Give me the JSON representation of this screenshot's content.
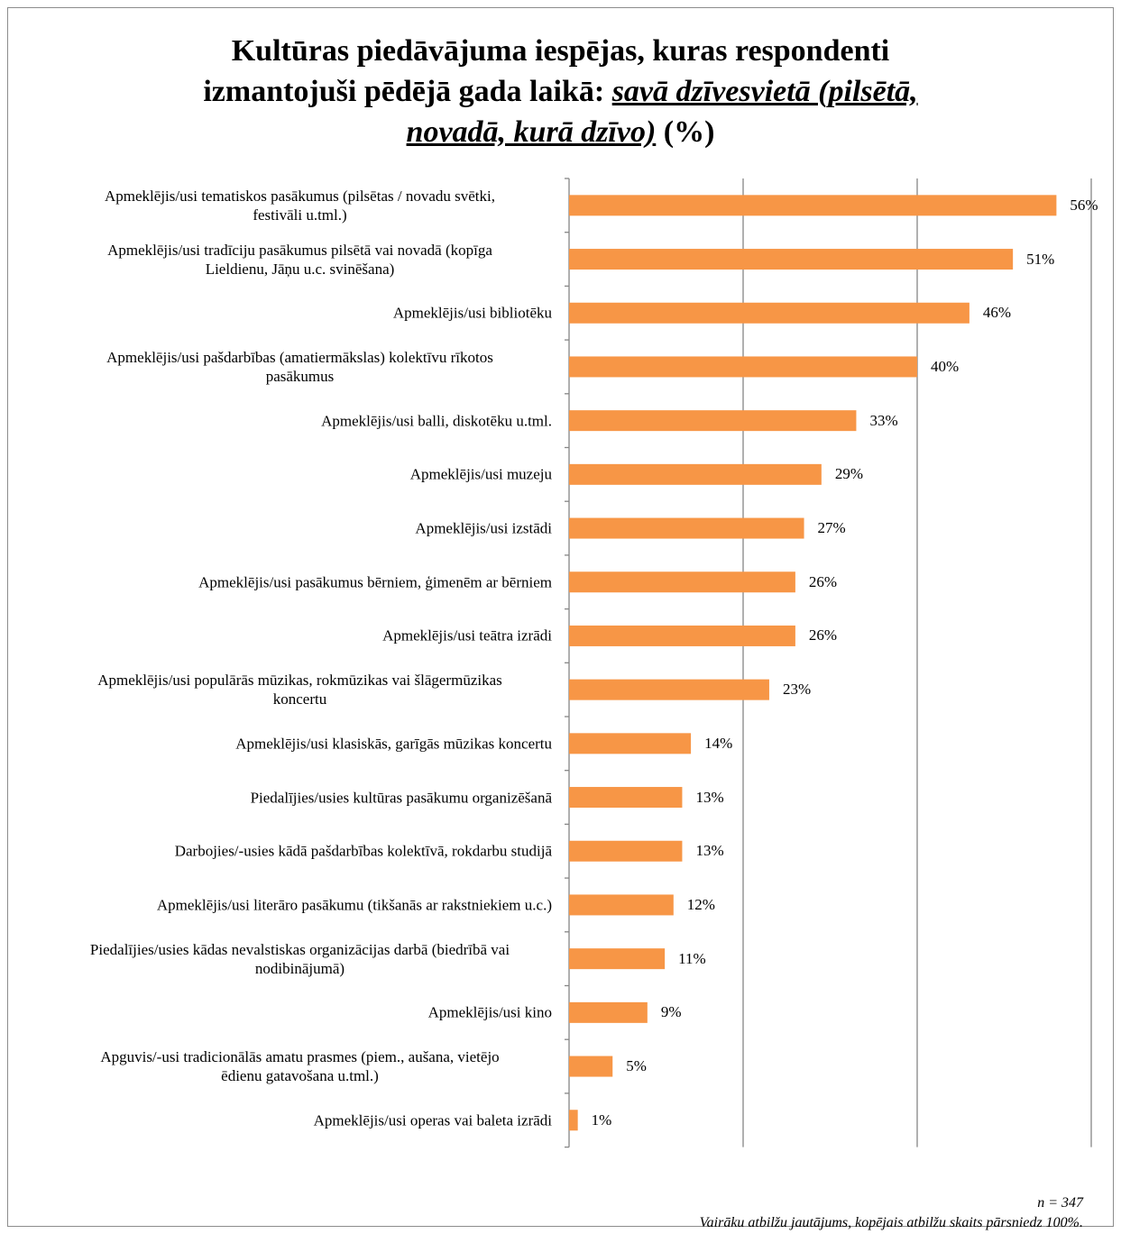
{
  "title": {
    "line1": "Kultūras piedāvājuma iespējas, kuras respondenti",
    "line2_plain": "izmantojuši pēdējā gada laikā: ",
    "line2_emph": "savā dzīvesvietā (pilsētā,",
    "line3_emph": "novadā, kurā dzīvo)",
    "line3_plain": " (%)"
  },
  "notes": {
    "sample": "n = 347",
    "multi": "Vairāku atbilžu jautājums, kopējais atbilžu skaits pārsniedz 100%."
  },
  "chart_data": {
    "type": "bar",
    "orientation": "horizontal",
    "xlim": [
      0,
      60
    ],
    "gridlines": [
      0,
      20,
      40,
      60
    ],
    "bar_color": "#f79646",
    "value_suffix": "%",
    "categories": [
      [
        "Apmeklējis/usi tematiskos pasākumus (pilsētas / novadu svētki,",
        "festivāli u.tml.)"
      ],
      [
        "Apmeklējis/usi tradīciju pasākumus pilsētā vai novadā (kopīga",
        "Lieldienu, Jāņu u.c. svinēšana)"
      ],
      [
        "Apmeklējis/usi bibliotēku"
      ],
      [
        "Apmeklējis/usi pašdarbības (amatiermākslas) kolektīvu rīkotos",
        "pasākumus"
      ],
      [
        "Apmeklējis/usi balli, diskotēku u.tml."
      ],
      [
        "Apmeklējis/usi muzeju"
      ],
      [
        "Apmeklējis/usi izstādi"
      ],
      [
        "Apmeklējis/usi pasākumus bērniem, ģimenēm ar bērniem"
      ],
      [
        "Apmeklējis/usi teātra izrādi"
      ],
      [
        "Apmeklējis/usi populārās mūzikas, rokmūzikas vai šlāgermūzikas",
        "koncertu"
      ],
      [
        "Apmeklējis/usi klasiskās, garīgās mūzikas koncertu"
      ],
      [
        "Piedalījies/usies kultūras pasākumu organizēšanā"
      ],
      [
        "Darbojies/-usies kādā pašdarbības kolektīvā, rokdarbu studijā"
      ],
      [
        "Apmeklējis/usi literāro pasākumu (tikšanās ar rakstniekiem u.c.)"
      ],
      [
        "Piedalījies/usies kādas nevalstiskas organizācijas darbā (biedrībā vai",
        "nodibinājumā)"
      ],
      [
        "Apmeklējis/usi kino"
      ],
      [
        "Apguvis/-usi tradicionālās amatu prasmes (piem., aušana, vietējo",
        "ēdienu gatavošana u.tml.)"
      ],
      [
        "Apmeklējis/usi operas vai baleta izrādi"
      ]
    ],
    "values": [
      56,
      51,
      46,
      40,
      33,
      29,
      27,
      26,
      26,
      23,
      14,
      13,
      13,
      12,
      11,
      9,
      5,
      1
    ]
  }
}
